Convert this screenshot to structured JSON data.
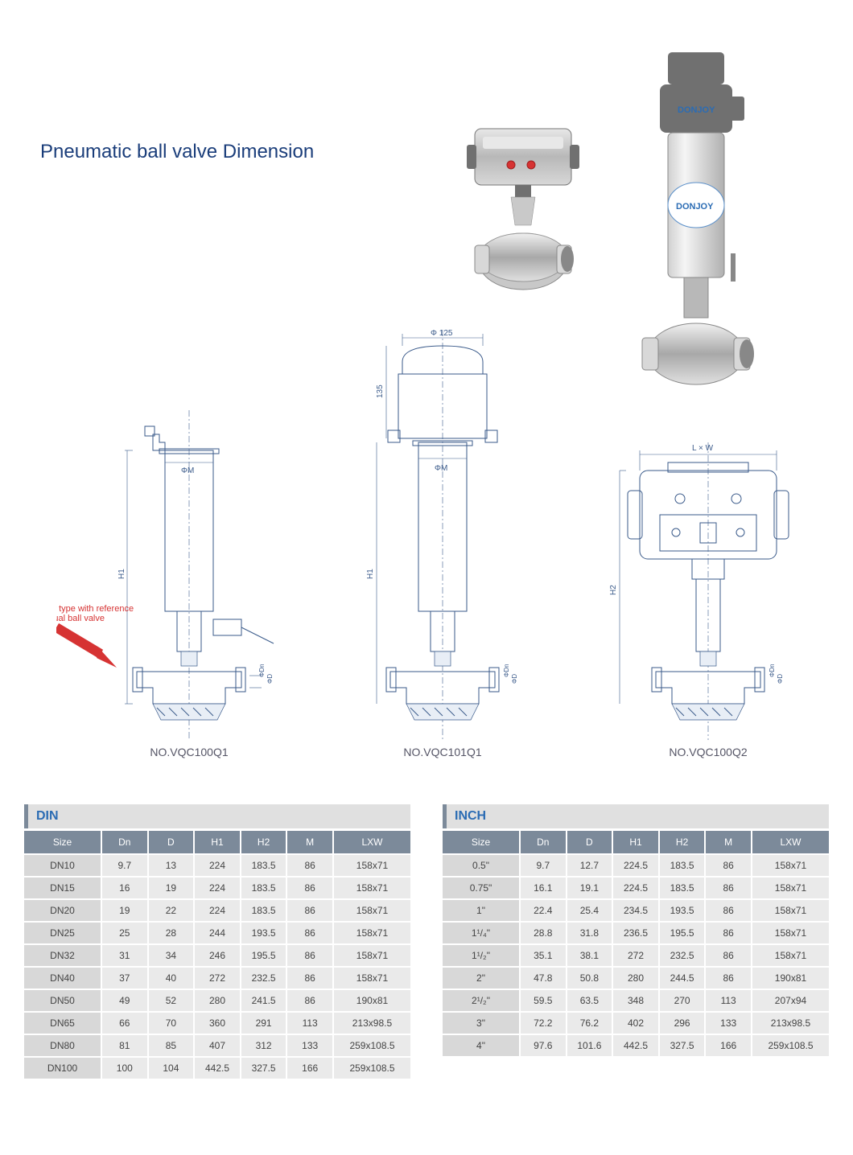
{
  "title": "Pneumatic ball valve Dimension",
  "colors": {
    "title": "#1a3d7a",
    "schematic_stroke": "#3a5a8a",
    "schematic_fill": "#b8c8dd",
    "table_header_bg": "#7c8a9a",
    "table_header_fg": "#ffffff",
    "table_cell_bg": "#eaeaea",
    "table_firstcol_bg": "#d8d8d8",
    "red": "#d63333",
    "title_bar_bg": "#e0e0e0",
    "brand_blue": "#2b6cb4"
  },
  "brand": "DONJOY",
  "red_note_line1": "Body type with reference",
  "red_note_line2": "manual ball valve",
  "diagrams": {
    "d1": {
      "label": "NO.VQC100Q1",
      "dims": {
        "H1": "H1",
        "M": "ΦM",
        "Dn": "ΦDn",
        "D": "ΦD"
      }
    },
    "d2": {
      "label": "NO.VQC101Q1",
      "dims": {
        "top_dia": "Φ 125",
        "top_h": "135",
        "H1": "H1",
        "M": "ΦM",
        "Dn": "ΦDn",
        "D": "ΦD"
      }
    },
    "d3": {
      "label": "NO.VQC100Q2",
      "dims": {
        "LxW": "L × W",
        "H2": "H2",
        "Dn": "ΦDn",
        "D": "ΦD"
      }
    }
  },
  "din": {
    "title": "DIN",
    "columns": [
      "Size",
      "Dn",
      "D",
      "H1",
      "H2",
      "M",
      "LXW"
    ],
    "rows": [
      [
        "DN10",
        "9.7",
        "13",
        "224",
        "183.5",
        "86",
        "158x71"
      ],
      [
        "DN15",
        "16",
        "19",
        "224",
        "183.5",
        "86",
        "158x71"
      ],
      [
        "DN20",
        "19",
        "22",
        "224",
        "183.5",
        "86",
        "158x71"
      ],
      [
        "DN25",
        "25",
        "28",
        "244",
        "193.5",
        "86",
        "158x71"
      ],
      [
        "DN32",
        "31",
        "34",
        "246",
        "195.5",
        "86",
        "158x71"
      ],
      [
        "DN40",
        "37",
        "40",
        "272",
        "232.5",
        "86",
        "158x71"
      ],
      [
        "DN50",
        "49",
        "52",
        "280",
        "241.5",
        "86",
        "190x81"
      ],
      [
        "DN65",
        "66",
        "70",
        "360",
        "291",
        "113",
        "213x98.5"
      ],
      [
        "DN80",
        "81",
        "85",
        "407",
        "312",
        "133",
        "259x108.5"
      ],
      [
        "DN100",
        "100",
        "104",
        "442.5",
        "327.5",
        "166",
        "259x108.5"
      ]
    ]
  },
  "inch": {
    "title": "INCH",
    "columns": [
      "Size",
      "Dn",
      "D",
      "H1",
      "H2",
      "M",
      "LXW"
    ],
    "rows": [
      [
        "0.5\"",
        "9.7",
        "12.7",
        "224.5",
        "183.5",
        "86",
        "158x71"
      ],
      [
        "0.75\"",
        "16.1",
        "19.1",
        "224.5",
        "183.5",
        "86",
        "158x71"
      ],
      [
        "1\"",
        "22.4",
        "25.4",
        "234.5",
        "193.5",
        "86",
        "158x71"
      ],
      [
        "1¹/₄\"",
        "28.8",
        "31.8",
        "236.5",
        "195.5",
        "86",
        "158x71"
      ],
      [
        "1¹/₂\"",
        "35.1",
        "38.1",
        "272",
        "232.5",
        "86",
        "158x71"
      ],
      [
        "2\"",
        "47.8",
        "50.8",
        "280",
        "244.5",
        "86",
        "190x81"
      ],
      [
        "2¹/₂\"",
        "59.5",
        "63.5",
        "348",
        "270",
        "113",
        "207x94"
      ],
      [
        "3\"",
        "72.2",
        "76.2",
        "402",
        "296",
        "133",
        "213x98.5"
      ],
      [
        "4\"",
        "97.6",
        "101.6",
        "442.5",
        "327.5",
        "166",
        "259x108.5"
      ]
    ]
  },
  "col_widths_pct": [
    20,
    12,
    12,
    12,
    12,
    12,
    20
  ]
}
